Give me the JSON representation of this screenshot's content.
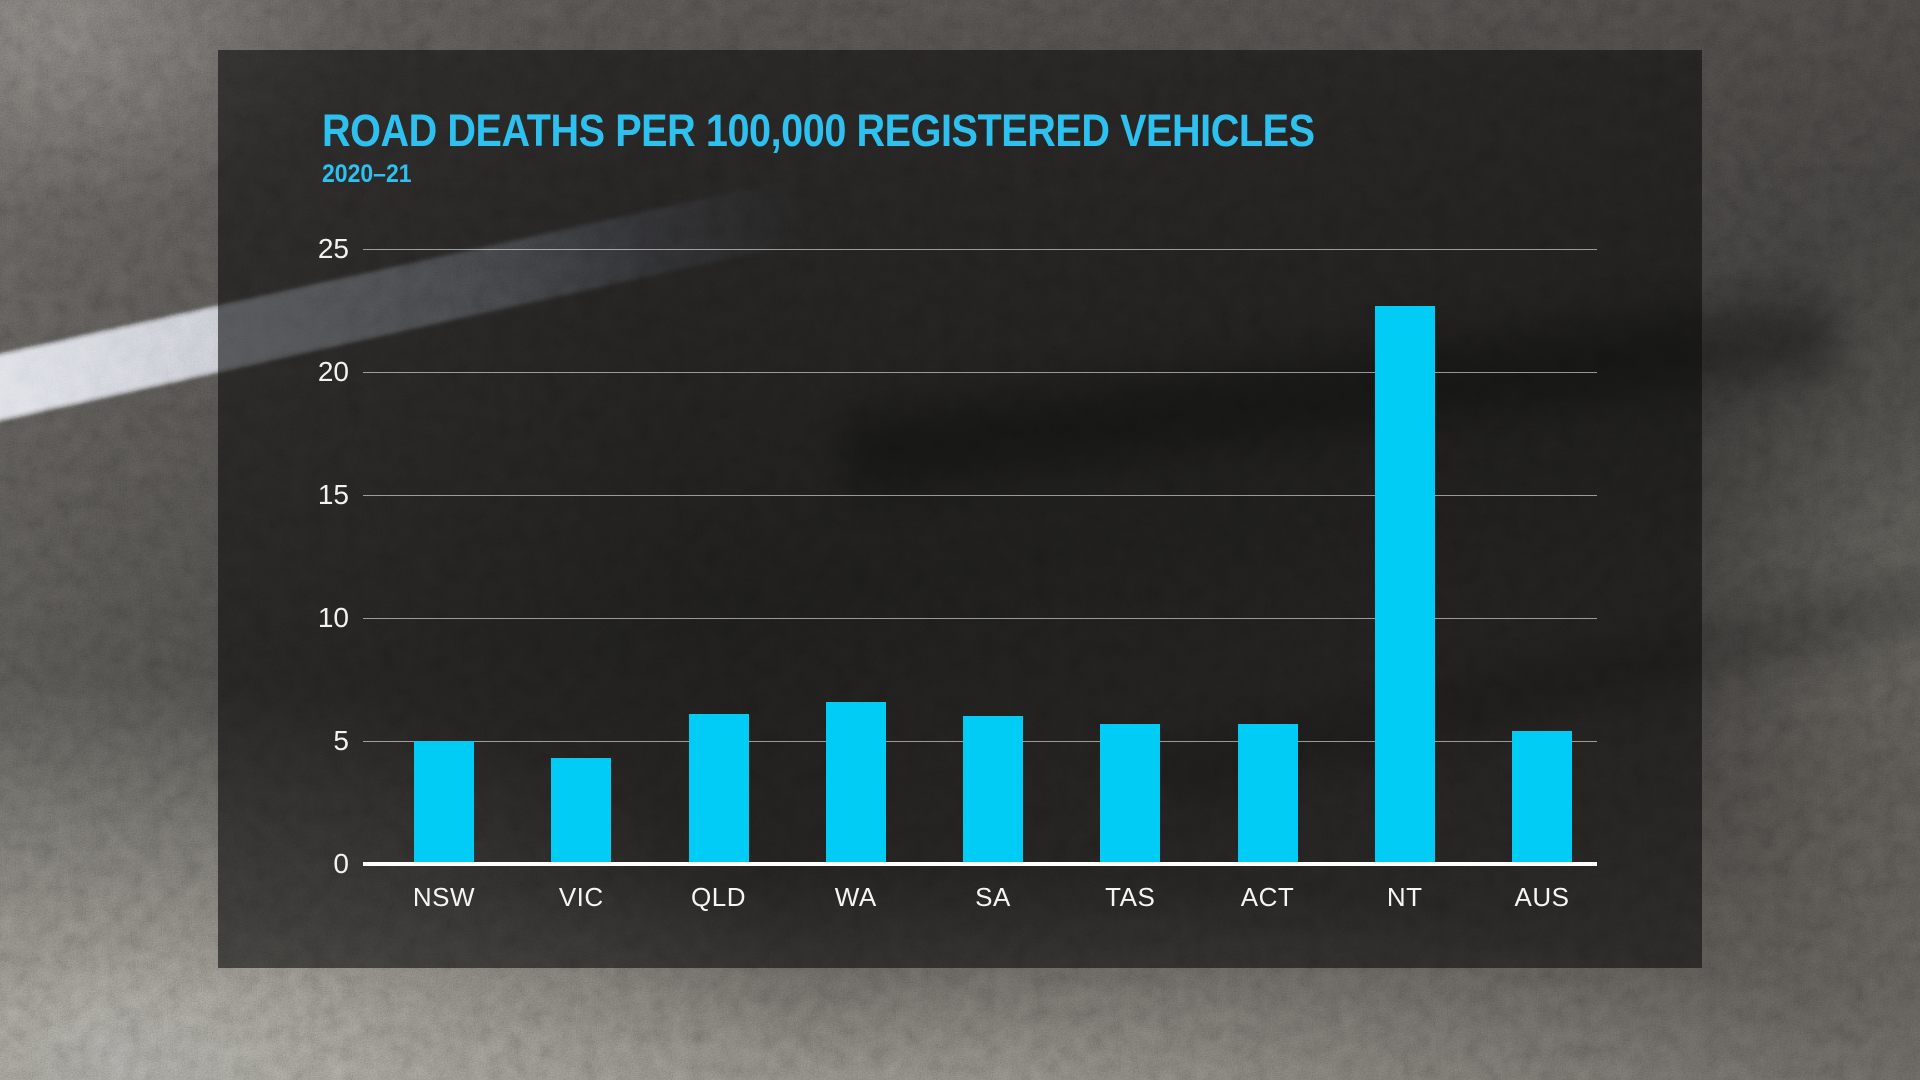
{
  "header": {
    "title": "ROAD DEATHS PER 100,000 REGISTERED VEHICLES",
    "subtitle": "2020–21"
  },
  "colors": {
    "title_cyan": "#2ec0ee",
    "bar_cyan": "#00ccf5",
    "axis_label_white": "#f2f2f2",
    "gridline": "rgba(255,255,255,0.55)",
    "axis_line": "#ffffff",
    "panel_overlay": "rgba(10,10,10,0.58)"
  },
  "chart_data": {
    "type": "bar",
    "title": "ROAD DEATHS PER 100,000 REGISTERED VEHICLES",
    "subtitle": "2020–21",
    "categories": [
      "NSW",
      "VIC",
      "QLD",
      "WA",
      "SA",
      "TAS",
      "ACT",
      "NT",
      "AUS"
    ],
    "values": [
      5.0,
      4.3,
      6.1,
      6.6,
      6.0,
      5.7,
      5.7,
      22.7,
      5.4
    ],
    "xlabel": "",
    "ylabel": "",
    "ylim": [
      0,
      25
    ],
    "yticks": [
      0,
      5,
      10,
      15,
      20,
      25
    ],
    "grid": "horizontal",
    "legend": "none",
    "bar_color": "#00ccf5"
  }
}
